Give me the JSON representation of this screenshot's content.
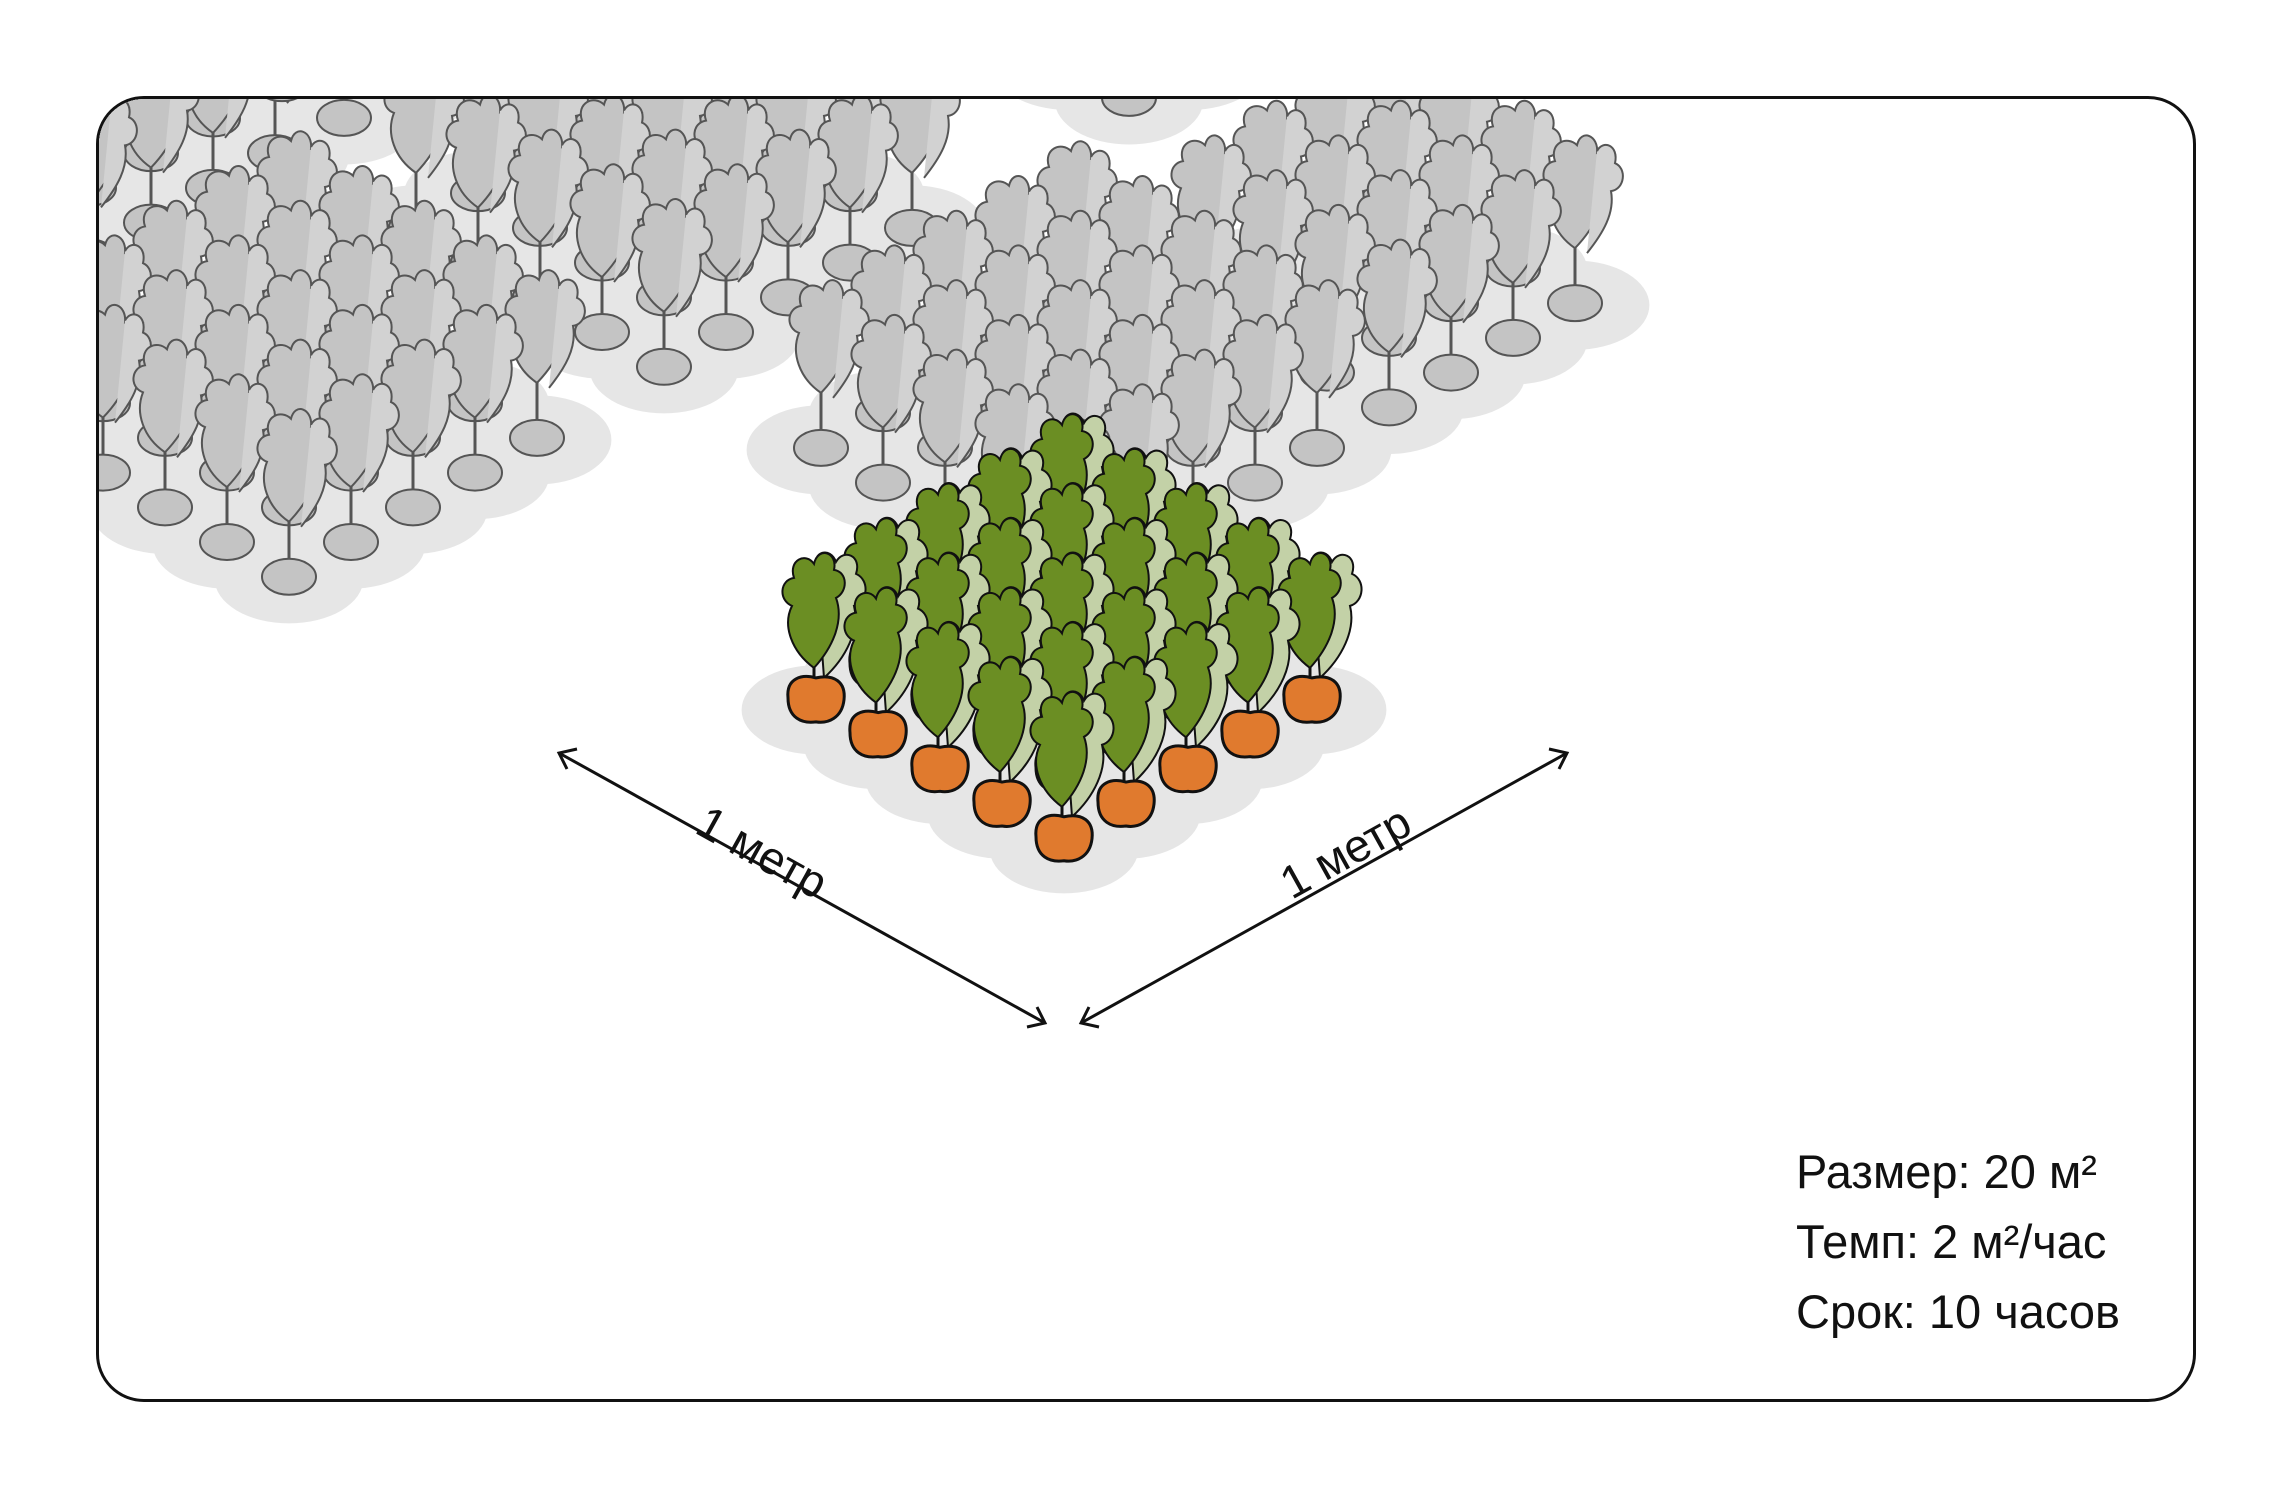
{
  "dimensions": {
    "left_label": "1 метр",
    "right_label": "1 метр"
  },
  "stats": {
    "size": "Размер: 20 м²",
    "pace": "Темп: 2 м²/час",
    "deadline": "Срок: 10 часов"
  },
  "colors": {
    "highlight_leaf_dark": "#6b8e23",
    "highlight_leaf_light": "#c3d1a7",
    "carrot_root": "#e07a2e",
    "background_plant": "#c4c4c4",
    "background_plant_light": "#d2d2d2",
    "soil_patch": "#e6e6e6",
    "outline": "#111111"
  },
  "icons": {
    "plant": "carrot-plant-icon",
    "arrow": "double-arrow-icon"
  }
}
